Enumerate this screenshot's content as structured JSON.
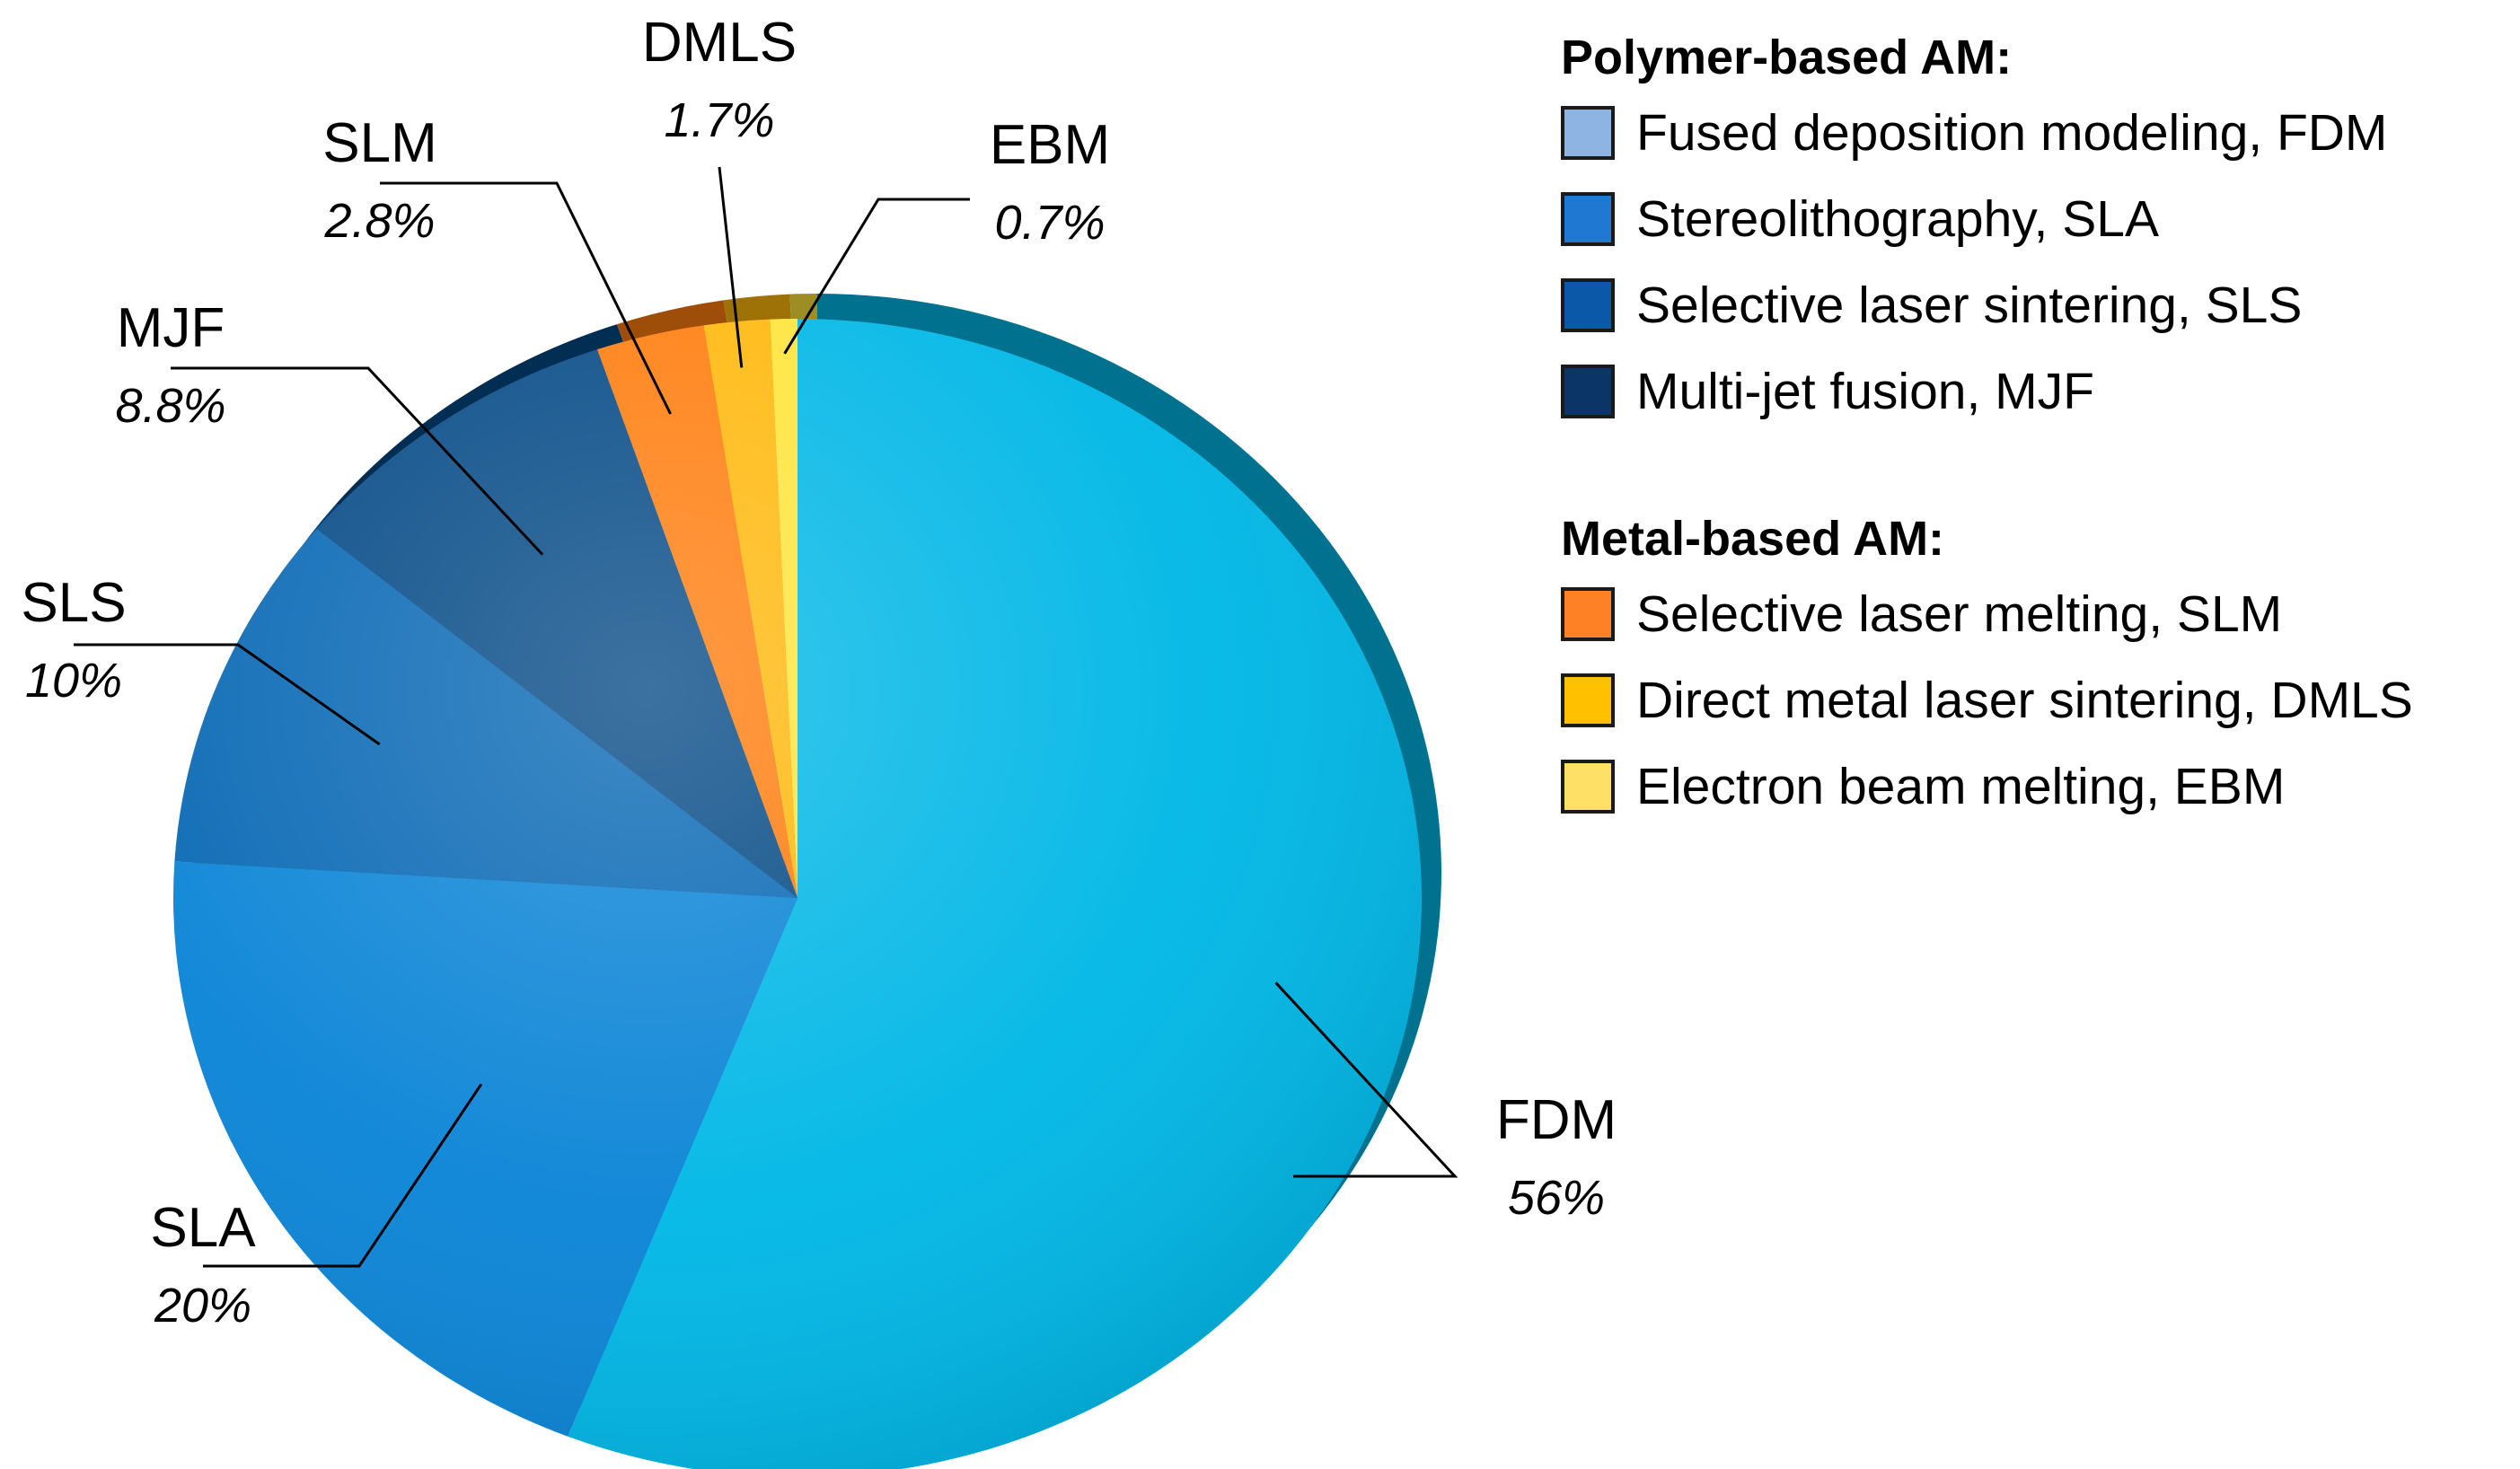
{
  "chart_data": {
    "type": "pie",
    "title": "",
    "slices": [
      {
        "key": "FDM",
        "label": "FDM",
        "value": 56,
        "value_label": "56%",
        "color": "#00b7e6"
      },
      {
        "key": "SLA",
        "label": "SLA",
        "value": 20,
        "value_label": "20%",
        "color": "#0a84d6"
      },
      {
        "key": "SLS",
        "label": "SLS",
        "value": 10,
        "value_label": "10%",
        "color": "#0868b4"
      },
      {
        "key": "MJF",
        "label": "MJF",
        "value": 8.8,
        "value_label": "8.8%",
        "color": "#054a86"
      },
      {
        "key": "SLM",
        "label": "SLM",
        "value": 2.8,
        "value_label": "2.8%",
        "color": "#ff7d0e"
      },
      {
        "key": "DMLS",
        "label": "DMLS",
        "value": 1.7,
        "value_label": "1.7%",
        "color": "#ffb80c"
      },
      {
        "key": "EBM",
        "label": "EBM",
        "value": 0.7,
        "value_label": "0.7%",
        "color": "#ffe43a"
      }
    ],
    "legend": {
      "placement": "top-right",
      "groups": [
        {
          "title": "Polymer-based AM:",
          "items": [
            {
              "label": "Fused deposition modeling, FDM",
              "color": "#8db4e2"
            },
            {
              "label": "Stereolithography, SLA",
              "color": "#1f78d1"
            },
            {
              "label": "Selective laser sintering, SLS",
              "color": "#0b58a8"
            },
            {
              "label": "Multi-jet fusion, MJF",
              "color": "#0a3566"
            }
          ]
        },
        {
          "title": "Metal-based AM:",
          "items": [
            {
              "label": "Selective laser melting, SLM",
              "color": "#ff8126"
            },
            {
              "label": "Direct metal laser sintering, DMLS",
              "color": "#ffc000"
            },
            {
              "label": "Electron beam melting, EBM",
              "color": "#ffe066"
            }
          ]
        }
      ]
    }
  }
}
